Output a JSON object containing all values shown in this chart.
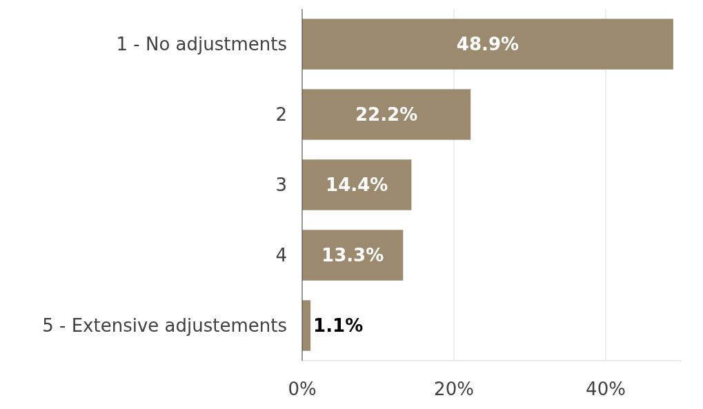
{
  "chart_data": {
    "type": "bar",
    "orientation": "horizontal",
    "categories": [
      "1 - No adjustments",
      "2",
      "3",
      "4",
      "5 - Extensive adjustements"
    ],
    "values": [
      48.9,
      22.2,
      14.4,
      13.3,
      1.1
    ],
    "color": "#9c8a6e",
    "value_labels": [
      "48.9%",
      "22.2%",
      "14.4%",
      "13.3%",
      "1.1%"
    ],
    "xlim": [
      0,
      50
    ],
    "xticks": [
      {
        "value": 0,
        "label": "0%"
      },
      {
        "value": 20,
        "label": "20%"
      },
      {
        "value": 40,
        "label": "40%"
      }
    ],
    "grid": "x"
  }
}
